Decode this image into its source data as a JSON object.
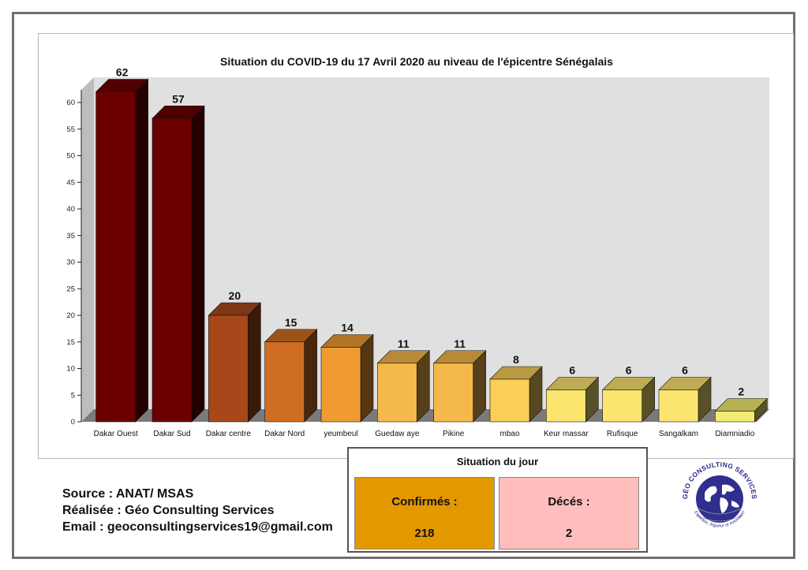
{
  "chart_data": {
    "type": "bar",
    "title": "Situation du COVID-19 du 17 Avril 2020 au niveau de l'épicentre Sénégalais",
    "categories": [
      "Dakar Ouest",
      "Dakar Sud",
      "Dakar centre",
      "Dakar Nord",
      "yeumbeul",
      "Guedaw aye",
      "Pikine",
      "mbao",
      "Keur massar",
      "Rufisque",
      "Sangalkam",
      "Diamniadio"
    ],
    "values": [
      62,
      57,
      20,
      15,
      14,
      11,
      11,
      8,
      6,
      6,
      6,
      2
    ],
    "colors": [
      "#6b0000",
      "#6b0000",
      "#a8481a",
      "#cf6e22",
      "#ef9b32",
      "#f5b84a",
      "#f5b84a",
      "#f9cf58",
      "#fbe56e",
      "#fbe56e",
      "#fbe56e",
      "#f4ec73"
    ],
    "ylim": [
      0,
      62
    ],
    "yticks": [
      0,
      5,
      10,
      15,
      20,
      25,
      30,
      35,
      40,
      45,
      50,
      55,
      60
    ],
    "xlabel": "",
    "ylabel": "",
    "grid": false,
    "legend": "none"
  },
  "source": {
    "source_line": "Source : ANAT/ MSAS",
    "made_by_line": "Réalisée : Géo Consulting Services",
    "email_line": "Email : geoconsultingservices19@gmail.com"
  },
  "summary": {
    "title": "Situation du jour",
    "confirmes_label": "Confirmés :",
    "confirmes_value": "218",
    "deces_label": "Décés :",
    "deces_value": "2",
    "confirmes_color": "#e39800",
    "deces_color": "#ffbdbd"
  },
  "logo": {
    "icon": "globe-icon",
    "arc_text": "GÉO CONSULTING SERVICES",
    "tagline": "Expertise, Rigueur et Innovation"
  }
}
